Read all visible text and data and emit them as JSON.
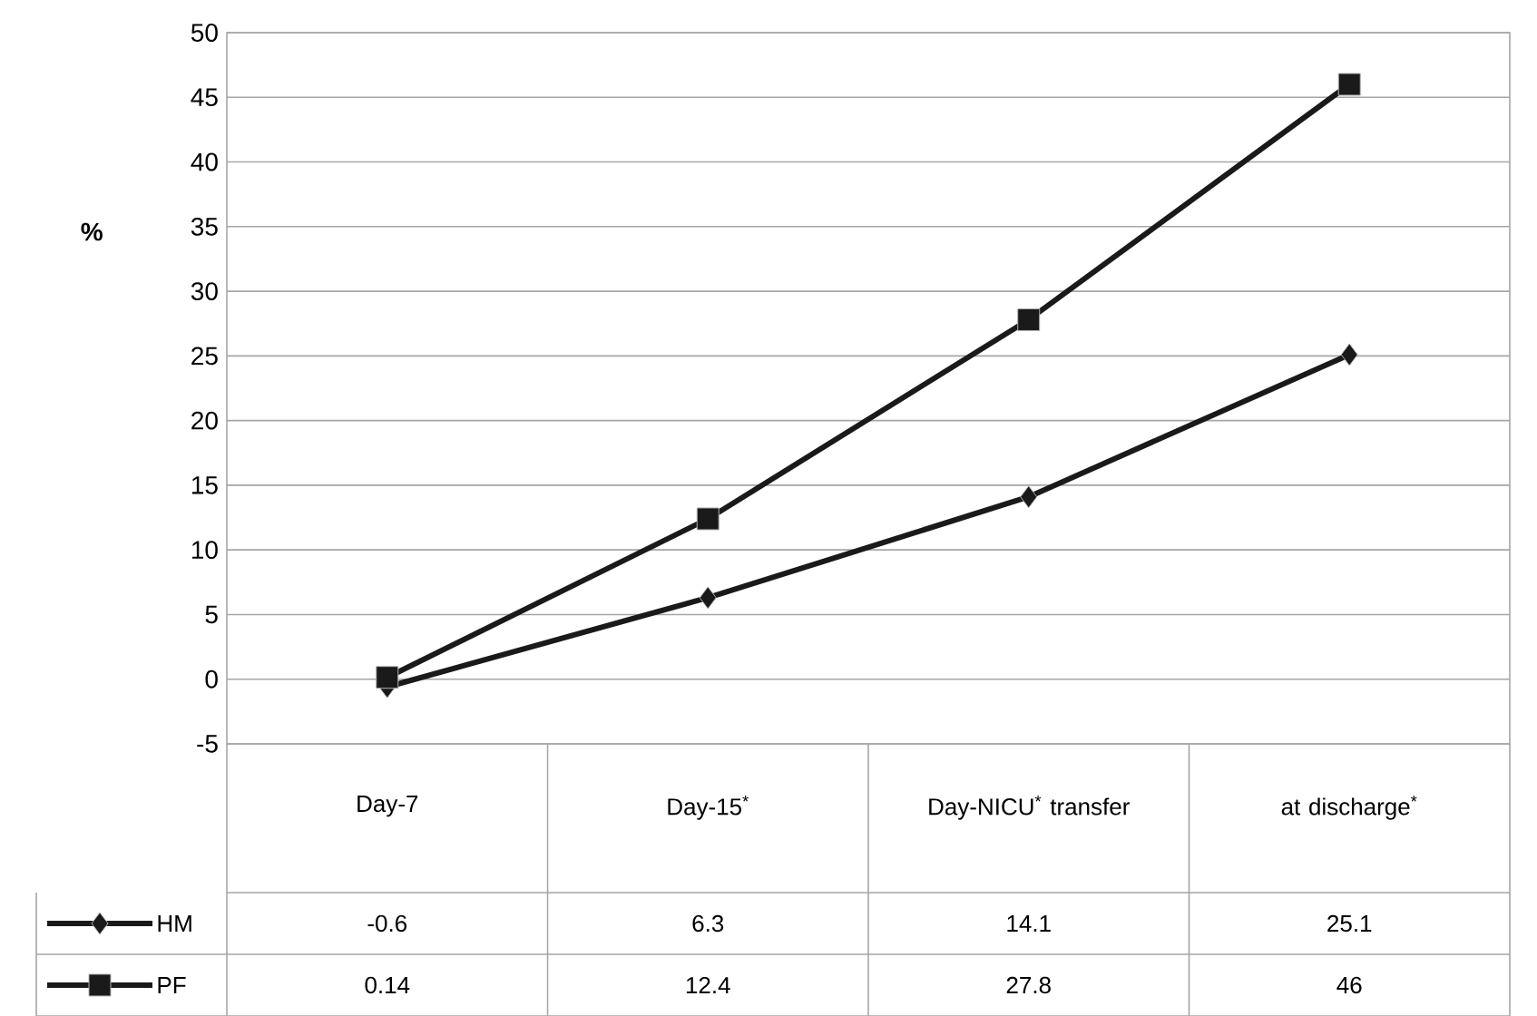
{
  "chart_data": {
    "type": "line",
    "ylabel": "%",
    "categories": [
      "Day-7",
      "Day-15$^{*}$",
      "Day-NICU$^{*}$ transfer",
      "at discharge$^{*}$"
    ],
    "series": [
      {
        "name": "HM",
        "color": "#1a1a1a",
        "marker": "diamond",
        "values": [
          -0.6,
          6.3,
          14.1,
          25.1
        ],
        "value_labels": [
          "-0.6",
          "6.3",
          "14.1",
          "25.1"
        ]
      },
      {
        "name": "PF",
        "color": "#1a1a1a",
        "marker": "square",
        "values": [
          0.14,
          12.4,
          27.8,
          46
        ],
        "value_labels": [
          "0.14",
          "12.4",
          "27.8",
          "46"
        ]
      }
    ],
    "ylim": [
      -5,
      50
    ],
    "yticks": [
      -5,
      0,
      5,
      10,
      15,
      20,
      25,
      30,
      35,
      40,
      45,
      50
    ],
    "grid": "y",
    "legend": "bottom",
    "line_style": "solid"
  }
}
